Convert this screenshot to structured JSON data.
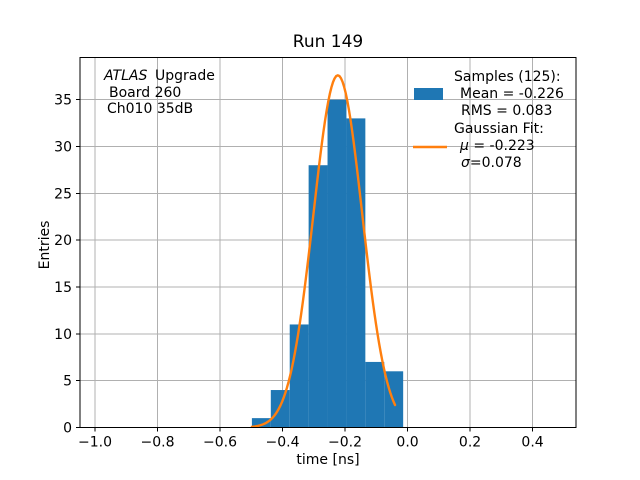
{
  "figure": {
    "background": "#ffffff"
  },
  "chart_data": {
    "type": "bar",
    "subtype": "histogram",
    "title": "Run 149",
    "xlabel": "time [ns]",
    "ylabel": "Entries",
    "xlim": [
      -1.048,
      0.539
    ],
    "ylim": [
      0,
      39.5
    ],
    "xticks": [
      -1.0,
      -0.8,
      -0.6,
      -0.4,
      -0.2,
      0.0,
      0.2,
      0.4
    ],
    "xtick_labels": [
      "−1.0",
      "−0.8",
      "−0.6",
      "−0.4",
      "−0.2",
      "0.0",
      "0.2",
      "0.4"
    ],
    "yticks": [
      0,
      5,
      10,
      15,
      20,
      25,
      30,
      35
    ],
    "ytick_labels": [
      "0",
      "5",
      "10",
      "15",
      "20",
      "25",
      "30",
      "35"
    ],
    "grid": true,
    "legend_position": "upper right",
    "total_samples": 125,
    "bin_edges": [
      -0.498,
      -0.4375,
      -0.377,
      -0.3165,
      -0.256,
      -0.1955,
      -0.135,
      -0.0745,
      -0.014
    ],
    "counts": [
      1,
      4,
      11,
      28,
      35,
      33,
      7,
      6
    ],
    "gaussian_fit": {
      "mu": -0.223,
      "sigma": 0.078,
      "peak": 37.6,
      "x_start": -0.498,
      "x_end": -0.04
    },
    "colors": {
      "bars": "#1f77b4",
      "curve": "#ff7f0e",
      "grid": "#b0b0b0",
      "axes": "#000000"
    }
  },
  "annotation": {
    "atlas": "ATLAS",
    "line1_rest": "Upgrade",
    "line2": "Board 260",
    "line3": "Ch010 35dB"
  },
  "legend": {
    "samples_title": "Samples (125):",
    "mean_label": "Mean = -0.226",
    "rms_label": "RMS = 0.083",
    "fit_title": "Gaussian Fit:",
    "mu_symbol": "μ",
    "mu_value": " = -0.223",
    "sigma_symbol": "σ",
    "sigma_value": "=0.078",
    "swatch_color": "#1f77b4",
    "line_color": "#ff7f0e"
  }
}
